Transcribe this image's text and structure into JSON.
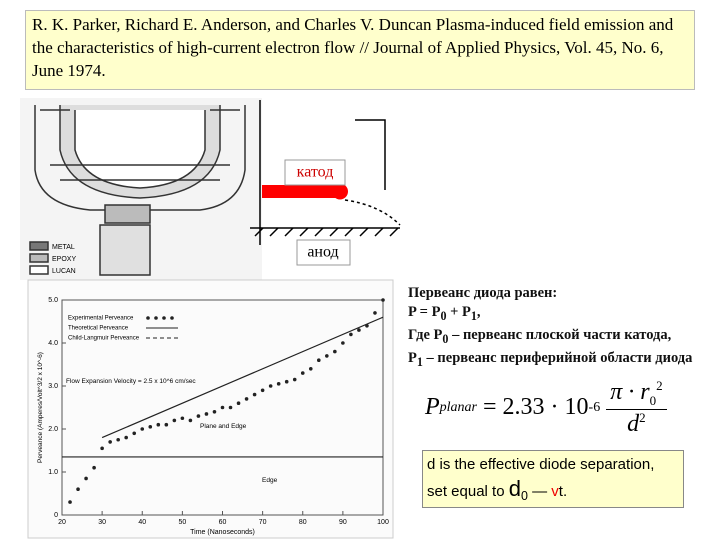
{
  "citation": "R. K. Parker, Richard E. Anderson, and Charles V. Duncan Plasma-induced field emission and the characteristics of high-current electron flow // Journal of Applied Physics, Vol. 45, No. 6, June 1974.",
  "device_legend": [
    "METAL",
    "EPOXY",
    "LUCAN"
  ],
  "diagram": {
    "cathode": "катод",
    "anode": "анод"
  },
  "notes": {
    "line1": "Первеанс диода равен:",
    "line2": [
      "P = P",
      "0",
      " + P",
      "1",
      ","
    ],
    "line3": [
      "Где P",
      "0",
      " – первеанс плоской части катода,"
    ],
    "line4": [
      "P",
      "1",
      " – первеанс периферийной области диода"
    ]
  },
  "formula": {
    "lhs": "P",
    "lhs_sub": "planar",
    "coef": "= 2.33 · 10",
    "exp": "-6",
    "num": "π · r",
    "num_sub": "0",
    "num_sup": "2",
    "den": "d",
    "den_sup": "2"
  },
  "definition": {
    "line1": "d is the effective diode separation,",
    "prefix": "set equal to ",
    "d": "d",
    "d_sub": "0",
    "dash": " — ",
    "v": "v",
    "t": "t."
  },
  "figure": {
    "type": "scatter",
    "x_label": "Time (Nanoseconds)",
    "y_label": "Perveance (Amperes/Volt^3/2 x 10^-6)",
    "annotations": [
      "Flow Expansion Velocity = 2.5 x 10^6 cm/sec",
      "Plane and Edge",
      "Edge"
    ],
    "xlim": [
      20,
      100
    ],
    "xticks": [
      20,
      30,
      40,
      50,
      60,
      70,
      80,
      90,
      100
    ],
    "ylim": [
      0,
      5
    ],
    "yticks": [
      0,
      {
        "value": 1,
        "label": "1.0"
      },
      {
        "value": 2,
        "label": "2.0"
      },
      {
        "value": 3,
        "label": "3.0"
      },
      {
        "value": 4,
        "label": "4.0"
      },
      {
        "value": 5,
        "label": "5.0"
      }
    ],
    "series": [
      {
        "name": "Experimental Perveance",
        "color": "#222222",
        "mark": "point",
        "x": [
          22,
          24,
          26,
          28,
          30,
          32,
          34,
          36,
          38,
          40,
          42,
          44,
          46,
          48,
          50,
          52,
          54,
          56,
          58,
          60,
          62,
          64,
          66,
          68,
          70,
          72,
          74,
          76,
          78,
          80,
          82,
          84,
          86,
          88,
          90,
          92,
          94,
          96,
          98,
          100
        ],
        "values": [
          0.3,
          0.6,
          0.85,
          1.1,
          1.55,
          1.7,
          1.75,
          1.8,
          1.9,
          2.0,
          2.05,
          2.1,
          2.1,
          2.2,
          2.25,
          2.2,
          2.3,
          2.35,
          2.4,
          2.5,
          2.5,
          2.6,
          2.7,
          2.8,
          2.9,
          3.0,
          3.05,
          3.1,
          3.15,
          3.3,
          3.4,
          3.6,
          3.7,
          3.8,
          4.0,
          4.2,
          4.3,
          4.4,
          4.7,
          5.0
        ]
      },
      {
        "name": "Theoretical Perveance",
        "color": "#222222",
        "mark": "line",
        "x": [
          30,
          100,
          null,
          20,
          100
        ],
        "values": [
          1.8,
          4.6,
          null,
          1.35,
          1.35
        ]
      },
      {
        "name": "Child-Langmuir Perveance",
        "color": "#222222",
        "mark": "dash",
        "x": [],
        "values": []
      }
    ]
  }
}
